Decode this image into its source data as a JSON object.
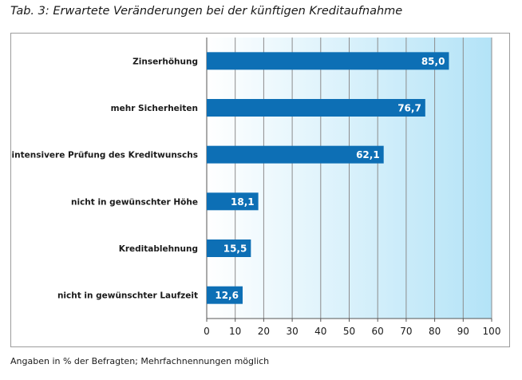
{
  "page": {
    "title": "Tab. 3: Erwartete Veränderungen bei der künftigen Kreditaufnahme",
    "footnote": "Angaben in % der Befragten; Mehrfachnennungen möglich"
  },
  "chart_data": {
    "type": "bar",
    "orientation": "horizontal",
    "categories": [
      "Zinserhöhung",
      "mehr Sicherheiten",
      "intensivere Prüfung des Kreditwunschs",
      "nicht in gewünschter Höhe",
      "Kreditablehnung",
      "nicht in gewünschter Laufzeit"
    ],
    "values": [
      85.0,
      76.7,
      62.1,
      18.1,
      15.5,
      12.6
    ],
    "value_labels": [
      "85,0",
      "76,7",
      "62,1",
      "18,1",
      "15,5",
      "12,6"
    ],
    "xlim": [
      0,
      100
    ],
    "xticks": [
      0,
      10,
      20,
      30,
      40,
      50,
      60,
      70,
      80,
      90,
      100
    ],
    "grid": true,
    "legend": "none",
    "colors": {
      "bar": "#0d6fb5",
      "plot_bg_start": "#ffffff",
      "plot_bg_end": "#b3e3f7",
      "gridline": "#8c8c8c",
      "bar_label": "#ffffff"
    }
  }
}
